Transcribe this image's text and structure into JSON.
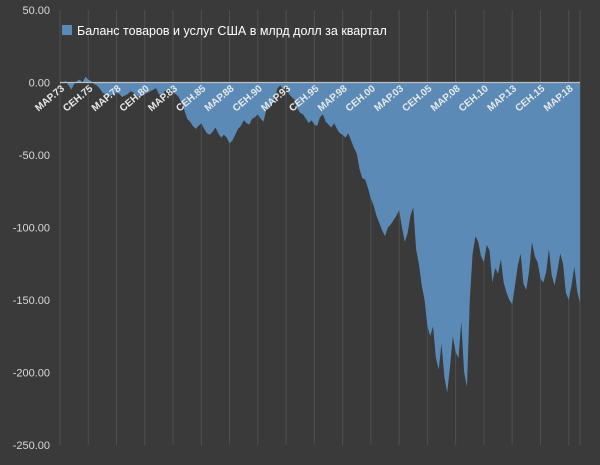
{
  "chart_data": {
    "type": "area",
    "title": "",
    "xlabel": "",
    "ylabel": "",
    "ylim": [
      -250,
      50
    ],
    "yticks": [
      "50.00",
      "0.00",
      "-50.00",
      "-100.00",
      "-150.00",
      "-200.00",
      "-250.00"
    ],
    "ytick_values": [
      50,
      0,
      -50,
      -100,
      -150,
      -200,
      -250
    ],
    "grid": "vertical",
    "legend_position": "top-left",
    "xtick_labels": [
      {
        "label": "МАР.73",
        "index": 0
      },
      {
        "label": "СЕН.75",
        "index": 10
      },
      {
        "label": "МАР.78",
        "index": 20
      },
      {
        "label": "СЕН.80",
        "index": 30
      },
      {
        "label": "МАР.83",
        "index": 40
      },
      {
        "label": "СЕН.85",
        "index": 50
      },
      {
        "label": "МАР.88",
        "index": 60
      },
      {
        "label": "СЕН.90",
        "index": 70
      },
      {
        "label": "МАР.93",
        "index": 80
      },
      {
        "label": "СЕН.95",
        "index": 90
      },
      {
        "label": "МАР.98",
        "index": 100
      },
      {
        "label": "СЕН.00",
        "index": 110
      },
      {
        "label": "МАР.03",
        "index": 120
      },
      {
        "label": "СЕН.05",
        "index": 130
      },
      {
        "label": "МАР.08",
        "index": 140
      },
      {
        "label": "СЕН.10",
        "index": 150
      },
      {
        "label": "МАР.13",
        "index": 160
      },
      {
        "label": "СЕН.15",
        "index": 170
      },
      {
        "label": "МАР.18",
        "index": 180
      }
    ],
    "series": [
      {
        "name": "Баланс товаров и услуг США в млрд долл за квартал",
        "color": "#5a8ab5",
        "values": [
          -1,
          0,
          1,
          -2,
          -5,
          -1,
          1,
          2,
          0,
          4,
          2,
          1,
          -1,
          -2,
          -4,
          -7,
          -8,
          -10,
          -9,
          -8,
          -7,
          -8,
          -10,
          -9,
          -8,
          -6,
          -7,
          -9,
          -10,
          -9,
          -8,
          -7,
          -6,
          -5,
          -4,
          -8,
          -9,
          -6,
          -5,
          -4,
          -7,
          -8,
          -10,
          -14,
          -19,
          -25,
          -27,
          -30,
          -32,
          -30,
          -28,
          -32,
          -35,
          -36,
          -34,
          -31,
          -35,
          -38,
          -36,
          -38,
          -42,
          -40,
          -36,
          -32,
          -30,
          -26,
          -28,
          -29,
          -25,
          -24,
          -22,
          -25,
          -27,
          -19,
          -18,
          -15,
          -10,
          -4,
          -2,
          -5,
          -1,
          -8,
          -10,
          -12,
          -18,
          -21,
          -22,
          -25,
          -28,
          -26,
          -29,
          -30,
          -24,
          -22,
          -27,
          -29,
          -31,
          -28,
          -32,
          -35,
          -36,
          -38,
          -35,
          -40,
          -45,
          -49,
          -60,
          -66,
          -67,
          -73,
          -80,
          -85,
          -92,
          -97,
          -102,
          -106,
          -100,
          -98,
          -95,
          -92,
          -88,
          -100,
          -110,
          -104,
          -92,
          -86,
          -115,
          -125,
          -140,
          -150,
          -168,
          -175,
          -168,
          -190,
          -198,
          -180,
          -203,
          -214,
          -196,
          -175,
          -186,
          -190,
          -165,
          -200,
          -210,
          -150,
          -118,
          -106,
          -110,
          -120,
          -124,
          -112,
          -116,
          -138,
          -128,
          -132,
          -122,
          -138,
          -145,
          -150,
          -153,
          -140,
          -126,
          -118,
          -139,
          -143,
          -130,
          -110,
          -120,
          -124,
          -135,
          -138,
          -131,
          -115,
          -133,
          -140,
          -130,
          -118,
          -125,
          -145,
          -150,
          -140,
          -127,
          -144,
          -152
        ]
      }
    ]
  }
}
